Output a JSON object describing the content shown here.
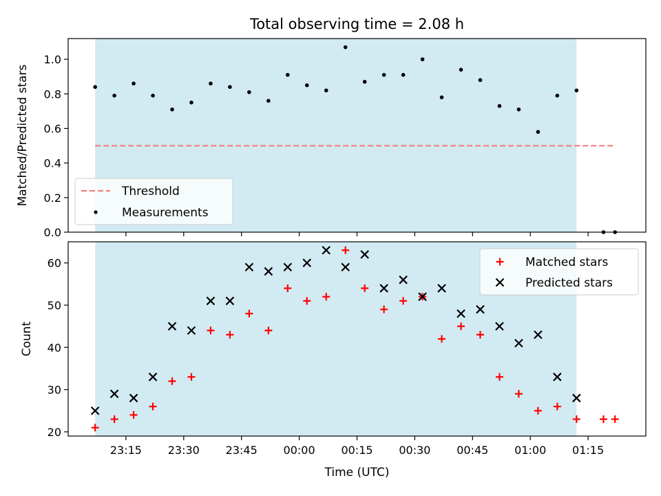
{
  "chart_data": [
    {
      "type": "scatter",
      "title": "Total observing time = 2.08 h",
      "xlabel": "",
      "ylabel": "Matched/Predicted stars",
      "ylim": [
        0,
        1.12
      ],
      "yticks": [
        0.0,
        0.2,
        0.4,
        0.6,
        0.8,
        1.0
      ],
      "ytick_labels": [
        "0.0",
        "0.2",
        "0.4",
        "0.6",
        "0.8",
        "1.0"
      ],
      "xaxis": "time",
      "shaded_span": [
        "23:07",
        "01:12"
      ],
      "shade_color": "#add8e6",
      "threshold": {
        "name": "Threshold",
        "value": 0.5,
        "x_range": [
          "23:07",
          "01:22"
        ],
        "color": "#f08080",
        "style": "dashed"
      },
      "series": [
        {
          "name": "Measurements",
          "color": "#000000",
          "marker": "dot",
          "x": [
            "23:07",
            "23:12",
            "23:17",
            "23:22",
            "23:27",
            "23:32",
            "23:37",
            "23:42",
            "23:47",
            "23:52",
            "23:57",
            "00:02",
            "00:07",
            "00:12",
            "00:17",
            "00:22",
            "00:27",
            "00:32",
            "00:37",
            "00:42",
            "00:47",
            "00:52",
            "00:57",
            "01:02",
            "01:07",
            "01:12",
            "01:19",
            "01:22"
          ],
          "y": [
            0.84,
            0.79,
            0.86,
            0.79,
            0.71,
            0.75,
            0.86,
            0.84,
            0.81,
            0.76,
            0.91,
            0.85,
            0.82,
            1.07,
            0.87,
            0.91,
            0.91,
            1.0,
            0.78,
            0.94,
            0.88,
            0.73,
            0.71,
            0.58,
            0.79,
            0.82,
            0.0,
            0.0
          ]
        }
      ],
      "legend": {
        "position": "lower-left",
        "entries": [
          "Threshold",
          "Measurements"
        ]
      },
      "grid": false
    },
    {
      "type": "scatter",
      "title": "",
      "xlabel": "Time (UTC)",
      "ylabel": "Count",
      "ylim": [
        19,
        65
      ],
      "yticks": [
        20,
        30,
        40,
        50,
        60
      ],
      "ytick_labels": [
        "20",
        "30",
        "40",
        "50",
        "60"
      ],
      "xaxis": "time",
      "xticks": [
        "23:15",
        "23:30",
        "23:45",
        "00:00",
        "00:15",
        "00:30",
        "00:45",
        "01:00",
        "01:15"
      ],
      "xlim": [
        "23:00",
        "01:30"
      ],
      "shaded_span": [
        "23:07",
        "01:12"
      ],
      "shade_color": "#add8e6",
      "series": [
        {
          "name": "Matched stars",
          "color": "#ff0000",
          "marker": "plus",
          "x": [
            "23:07",
            "23:12",
            "23:17",
            "23:22",
            "23:27",
            "23:32",
            "23:37",
            "23:42",
            "23:47",
            "23:52",
            "23:57",
            "00:02",
            "00:07",
            "00:12",
            "00:17",
            "00:22",
            "00:27",
            "00:32",
            "00:37",
            "00:42",
            "00:47",
            "00:52",
            "00:57",
            "01:02",
            "01:07",
            "01:12",
            "01:19",
            "01:22"
          ],
          "y": [
            21,
            23,
            24,
            26,
            32,
            33,
            44,
            43,
            48,
            44,
            54,
            51,
            52,
            63,
            54,
            49,
            51,
            52,
            42,
            45,
            43,
            33,
            29,
            25,
            26,
            23,
            23,
            23
          ]
        },
        {
          "name": "Predicted stars",
          "color": "#000000",
          "marker": "x",
          "x": [
            "23:07",
            "23:12",
            "23:17",
            "23:22",
            "23:27",
            "23:32",
            "23:37",
            "23:42",
            "23:47",
            "23:52",
            "23:57",
            "00:02",
            "00:07",
            "00:12",
            "00:17",
            "00:22",
            "00:27",
            "00:32",
            "00:37",
            "00:42",
            "00:47",
            "00:52",
            "00:57",
            "01:02",
            "01:07",
            "01:12"
          ],
          "y": [
            25,
            29,
            28,
            33,
            45,
            44,
            51,
            51,
            59,
            58,
            59,
            60,
            63,
            59,
            62,
            54,
            56,
            52,
            54,
            48,
            49,
            45,
            41,
            43,
            33,
            28
          ]
        }
      ],
      "legend": {
        "position": "upper-right",
        "entries": [
          "Matched stars",
          "Predicted stars"
        ]
      },
      "grid": false
    }
  ]
}
